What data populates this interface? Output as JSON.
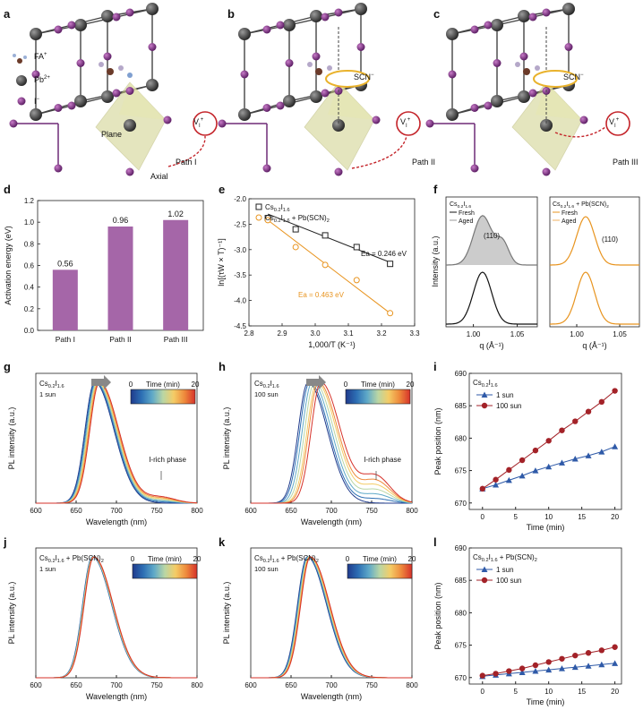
{
  "panels": {
    "a": {
      "label": "a",
      "legend": [
        {
          "ion": "FA",
          "charge": "+"
        },
        {
          "ion": "Pb",
          "charge": "2+"
        },
        {
          "ion": "I",
          "charge": "−"
        }
      ],
      "plane": "Plane",
      "axial": "Axial",
      "vacancy": {
        "main": "V",
        "sub": "I",
        "sup": "+"
      },
      "path": "Path I"
    },
    "b": {
      "label": "b",
      "scn": "SCN",
      "scn_sup": "−",
      "vacancy": {
        "main": "V",
        "sub": "I",
        "sup": "+"
      },
      "path": "Path II"
    },
    "c": {
      "label": "c",
      "scn": "SCN",
      "scn_sup": "−",
      "vacancy": {
        "main": "V",
        "sub": "I",
        "sup": "+"
      },
      "path": "Path III"
    },
    "d": {
      "label": "d",
      "ylabel": "Activation energy (eV)",
      "yticks": [
        "0.0",
        "0.2",
        "0.4",
        "0.6",
        "0.8",
        "1.0",
        "1.2"
      ],
      "bar_color": "#a566a8"
    },
    "e": {
      "label": "e",
      "xlabel": "1,000/T (K⁻¹)",
      "ylabel": "ln[(τW × T)⁻¹]",
      "legend": [
        "Cs0.2I1.6",
        "Cs0.2I1.6 + Pb(SCN)2"
      ],
      "ea_black": "Ea = 0.246 eV",
      "ea_orange": "Ea = 0.463 eV",
      "xticks": [
        "2.8",
        "2.9",
        "3.0",
        "3.1",
        "3.2",
        "3.3"
      ],
      "yticks": [
        "-2.0",
        "-2.5",
        "-3.0",
        "-3.5",
        "-4.0",
        "-4.5"
      ]
    },
    "f": {
      "label": "f",
      "left_title": "Cs0.2I1.6",
      "right_title": "Cs0.2I1.6 + Pb(SCN)2",
      "left_legend": [
        "Fresh",
        "Aged"
      ],
      "right_legend": [
        "Fresh",
        "Aged"
      ],
      "peak": "(110)",
      "ylabel": "Intensity (a.u.)",
      "xlabel": "q (Å⁻¹)",
      "xticks": [
        "1.00",
        "1.05"
      ]
    },
    "g": {
      "label": "g",
      "sample": "Cs0.2I1.6",
      "light": "1 sun",
      "annotation": "I-rich phase"
    },
    "h": {
      "label": "h",
      "sample": "Cs0.2I1.6",
      "light": "100 sun",
      "annotation": "I-rich phase"
    },
    "i": {
      "label": "i",
      "sample": "Cs0.2I1.6",
      "legend": [
        "1 sun",
        "100 sun"
      ]
    },
    "j": {
      "label": "j",
      "sample": "Cs0.2I1.6 + Pb(SCN)2",
      "light": "1 sun"
    },
    "k": {
      "label": "k",
      "sample": "Cs0.2I1.6 + Pb(SCN)2",
      "light": "100 sun"
    },
    "l": {
      "label": "l",
      "sample": "Cs0.2I1.6 + Pb(SCN)2",
      "legend": [
        "1 sun",
        "100 sun"
      ]
    }
  },
  "pl_axes": {
    "xlabel": "Wavelength (nm)",
    "ylabel": "PL intensity (a.u.)",
    "xticks": [
      "600",
      "650",
      "700",
      "750",
      "800"
    ],
    "time_label": "Time (min)",
    "time_min": "0",
    "time_max": "20"
  },
  "peak_axes": {
    "xlabel": "Time (min)",
    "ylabel": "Peak position (nm)",
    "xticks": [
      "0",
      "5",
      "10",
      "15",
      "20"
    ],
    "yticks": [
      "670",
      "675",
      "680",
      "685",
      "690"
    ]
  },
  "chart_data": [
    {
      "id": "d",
      "type": "bar",
      "categories": [
        "Path I",
        "Path II",
        "Path III"
      ],
      "values": [
        0.56,
        0.96,
        1.02
      ],
      "data_labels": [
        "0.56",
        "0.96",
        "1.02"
      ],
      "ylabel": "Activation energy (eV)",
      "ylim": [
        0,
        1.2
      ]
    },
    {
      "id": "e",
      "type": "scatter",
      "xlabel": "1,000/T (K⁻¹)",
      "ylabel": "ln[(τW × T)⁻¹]",
      "xlim": [
        2.8,
        3.3
      ],
      "ylim": [
        -4.5,
        -2.0
      ],
      "series": [
        {
          "name": "Cs0.2I1.6",
          "color": "#222222",
          "marker": "square",
          "x": [
            2.857,
            2.941,
            3.03,
            3.125,
            3.226
          ],
          "y": [
            -2.38,
            -2.6,
            -2.72,
            -2.95,
            -3.28
          ],
          "fit": [
            [
              2.857,
              -2.3
            ],
            [
              3.226,
              -3.25
            ]
          ]
        },
        {
          "name": "Cs0.2I1.6 + Pb(SCN)2",
          "color": "#e8941f",
          "marker": "circle",
          "x": [
            2.857,
            2.941,
            3.03,
            3.125,
            3.226
          ],
          "y": [
            -2.42,
            -2.95,
            -3.3,
            -3.6,
            -4.25
          ],
          "fit": [
            [
              2.857,
              -2.42
            ],
            [
              3.226,
              -4.25
            ]
          ]
        }
      ]
    },
    {
      "id": "i",
      "type": "line",
      "xlabel": "Time (min)",
      "ylabel": "Peak position (nm)",
      "xlim": [
        -2,
        21
      ],
      "ylim": [
        669,
        690
      ],
      "x": [
        0,
        2,
        4,
        6,
        8,
        10,
        12,
        14,
        16,
        18,
        20
      ],
      "series": [
        {
          "name": "1 sun",
          "color": "#2f5aa8",
          "marker": "triangle",
          "values": [
            672.2,
            672.8,
            673.5,
            674.2,
            675.0,
            675.6,
            676.2,
            676.8,
            677.3,
            677.9,
            678.7
          ]
        },
        {
          "name": "100 sun",
          "color": "#a32228",
          "marker": "circle",
          "values": [
            672.2,
            673.6,
            675.1,
            676.6,
            678.1,
            679.6,
            681.2,
            682.6,
            684.1,
            685.6,
            687.3
          ]
        }
      ]
    },
    {
      "id": "l",
      "type": "line",
      "xlabel": "Time (min)",
      "ylabel": "Peak position (nm)",
      "xlim": [
        -2,
        21
      ],
      "ylim": [
        669,
        690
      ],
      "x": [
        0,
        2,
        4,
        6,
        8,
        10,
        12,
        14,
        16,
        18,
        20
      ],
      "series": [
        {
          "name": "1 sun",
          "color": "#2f5aa8",
          "marker": "triangle",
          "values": [
            670.2,
            670.4,
            670.6,
            670.8,
            671.0,
            671.2,
            671.4,
            671.6,
            671.8,
            672.0,
            672.2
          ]
        },
        {
          "name": "100 sun",
          "color": "#a32228",
          "marker": "circle",
          "values": [
            670.3,
            670.6,
            671.0,
            671.4,
            671.9,
            672.4,
            672.9,
            673.4,
            673.8,
            674.2,
            674.7
          ]
        }
      ]
    },
    {
      "id": "g",
      "type": "line",
      "xlabel": "Wavelength (nm)",
      "ylabel": "PL intensity (a.u.)",
      "xlim": [
        600,
        800
      ],
      "peaks_nm": [
        673,
        674,
        675,
        676,
        677,
        678,
        679
      ],
      "shoulder": 0.05
    },
    {
      "id": "h",
      "type": "line",
      "xlabel": "Wavelength (nm)",
      "ylabel": "PL intensity (a.u.)",
      "xlim": [
        600,
        800
      ],
      "peaks_nm": [
        671,
        673,
        676,
        679,
        682,
        684,
        687
      ],
      "shoulder": 0.22
    },
    {
      "id": "j",
      "type": "line",
      "xlabel": "Wavelength (nm)",
      "ylabel": "PL intensity (a.u.)",
      "xlim": [
        600,
        800
      ],
      "peaks_nm": [
        670,
        670.3,
        670.6,
        671,
        671.4,
        671.7,
        672
      ],
      "shoulder": 0
    },
    {
      "id": "k",
      "type": "line",
      "xlabel": "Wavelength (nm)",
      "ylabel": "PL intensity (a.u.)",
      "xlim": [
        600,
        800
      ],
      "peaks_nm": [
        670,
        670.7,
        671.3,
        672,
        672.7,
        673.4,
        674
      ],
      "shoulder": 0
    }
  ]
}
